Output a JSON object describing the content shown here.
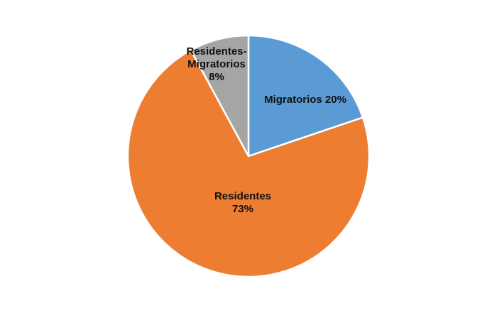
{
  "chart_data": {
    "type": "pie",
    "slices": [
      {
        "name": "Migratorios",
        "value": 20,
        "color": "#5b9bd5",
        "label_lines": [
          "Migratorios 20%"
        ]
      },
      {
        "name": "Residentes",
        "value": 73,
        "color": "#ed7d31",
        "label_lines": [
          "Residentes",
          "73%"
        ]
      },
      {
        "name": "Residentes-Migratorios",
        "value": 8,
        "color": "#a5a5a5",
        "label_lines": [
          "Residentes-",
          "Migratorios",
          "8%"
        ]
      }
    ],
    "start_angle_deg": 0,
    "direction": "clockwise",
    "legend": "none"
  }
}
